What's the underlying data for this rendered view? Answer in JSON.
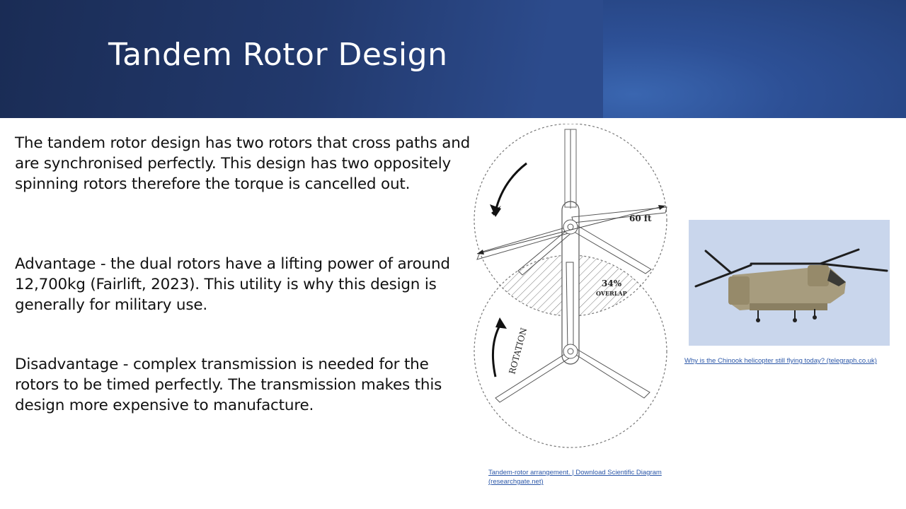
{
  "slide": {
    "title": "Tandem Rotor Design",
    "paragraphs": [
      "The tandem rotor design has two rotors that cross paths and are synchronised perfectly.  This design has two oppositely spinning rotors therefore the torque is cancelled out.",
      "Advantage - the dual rotors have a lifting power of around 12,700kg (Fairlift, 2023). This utility is why this design is generally for military use.",
      "Disadvantage - complex transmission is needed for the rotors to be timed perfectly.  The transmission makes this design more expensive to manufacture."
    ]
  },
  "diagram": {
    "dimension_label": "60 ft",
    "overlap_percent": "34%",
    "overlap_label": "OVERLAP",
    "rotation_label": "ROTATION"
  },
  "links": {
    "photo_source": "Why is the Chinook helicopter still flying today? (telegraph.co.uk)",
    "diagram_source_line1": "Tandem-rotor arrangement. | Download Scientific Diagram",
    "diagram_source_line2": "(researchgate.net)"
  },
  "colors": {
    "banner": "#22396d",
    "link": "#2b57a8",
    "sky": "#c9d6ec"
  }
}
